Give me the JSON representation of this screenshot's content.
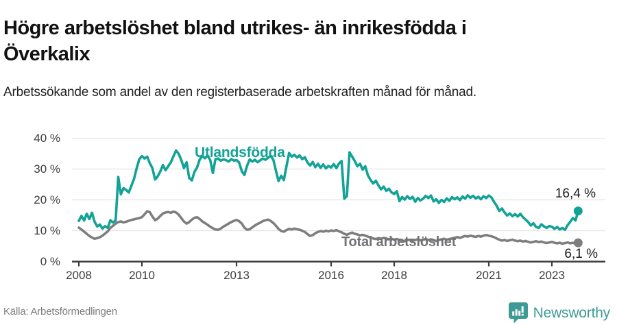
{
  "header": {
    "title_line1": "Högre arbetslöshet bland utrikes- än inrikesfödda i",
    "title_line2": "Överkalix",
    "subtitle": "Arbetssökande som andel av den registerbaserade arbetskraften månad för månad."
  },
  "footer": {
    "source": "Källa: Arbetsförmedlingen",
    "brand": "Newsworthy"
  },
  "colors": {
    "teal_line": "#12a296",
    "gray_line": "#7e7e7e",
    "grid": "#e2e2e2",
    "axis": "#3c3c3c",
    "brand_teal": "#3d9a94"
  },
  "chart_data": {
    "type": "line",
    "frequency": "monthly",
    "x_start": "2008-01",
    "x_end": "2023-11",
    "ylim": [
      0,
      40
    ],
    "grid": "horizontal",
    "y_ticks": [
      {
        "label": "40 %",
        "value": 40
      },
      {
        "label": "30 %",
        "value": 30
      },
      {
        "label": "20 %",
        "value": 20
      },
      {
        "label": "10 %",
        "value": 10
      },
      {
        "label": "0 %",
        "value": 0
      }
    ],
    "x_ticks": [
      {
        "label": "2008",
        "month_index": 0
      },
      {
        "label": "2010",
        "month_index": 24
      },
      {
        "label": "2013",
        "month_index": 60
      },
      {
        "label": "2016",
        "month_index": 96
      },
      {
        "label": "2018",
        "month_index": 120
      },
      {
        "label": "2021",
        "month_index": 156
      },
      {
        "label": "2023",
        "month_index": 180
      }
    ],
    "annotations": {
      "utlandsfodda_label": "Utlandsfödda",
      "total_label": "Total arbetslöshet",
      "utlandsfodda_end_value": "16,4 %",
      "total_end_value": "6,1 %"
    },
    "series": [
      {
        "name": "Utlandsfödda",
        "color": "#12a296",
        "end_marker": true,
        "values": [
          13.2,
          14.8,
          13.3,
          15.5,
          13.8,
          15.8,
          12.9,
          11.4,
          12.0,
          10.7,
          11.5,
          10.9,
          13.4,
          12.7,
          13.3,
          27.4,
          21.8,
          23.8,
          23.2,
          22.4,
          24.6,
          26.8,
          30.2,
          33.2,
          34.2,
          33.4,
          34.0,
          31.9,
          30.3,
          26.6,
          27.6,
          29.2,
          31.3,
          29.6,
          30.9,
          32.2,
          34.1,
          36.0,
          34.9,
          32.9,
          30.3,
          32.2,
          27.1,
          26.3,
          29.1,
          30.5,
          33.1,
          34.2,
          33.5,
          34.4,
          32.9,
          28.7,
          33.2,
          33.4,
          32.7,
          33.1,
          32.9,
          32.4,
          33.2,
          32.7,
          32.9,
          32.1,
          29.3,
          28.1,
          31.0,
          33.1,
          32.4,
          33.0,
          32.2,
          32.8,
          33.4,
          33.0,
          33.6,
          34.3,
          33.0,
          29.5,
          26.1,
          27.8,
          26.4,
          30.8,
          35.2,
          34.0,
          34.6,
          33.7,
          34.4,
          33.2,
          33.8,
          32.1,
          31.1,
          32.3,
          30.6,
          31.7,
          30.4,
          31.5,
          30.2,
          31.0,
          30.5,
          31.6,
          30.3,
          31.8,
          32.6,
          20.4,
          21.2,
          35.4,
          34.0,
          32.6,
          30.9,
          31.7,
          29.8,
          30.9,
          27.9,
          26.5,
          25.3,
          26.2,
          24.7,
          23.4,
          24.3,
          22.9,
          23.6,
          22.4,
          21.9,
          22.8,
          19.6,
          20.9,
          20.1,
          21.2,
          20.3,
          21.0,
          19.4,
          20.6,
          19.8,
          20.4,
          21.3,
          20.6,
          21.4,
          19.5,
          20.2,
          19.0,
          20.0,
          19.3,
          20.5,
          19.7,
          20.9,
          20.2,
          20.8,
          19.9,
          21.1,
          20.4,
          21.5,
          20.7,
          21.3,
          20.5,
          21.0,
          20.2,
          21.2,
          20.6,
          21.4,
          20.8,
          19.3,
          18.1,
          16.4,
          17.2,
          15.9,
          14.9,
          15.6,
          14.7,
          15.4,
          14.6,
          15.5,
          14.4,
          13.6,
          12.8,
          11.7,
          12.4,
          11.2,
          10.9,
          12.1,
          11.4,
          10.9,
          11.5,
          11.3,
          10.6,
          11.2,
          10.4,
          10.9,
          10.3,
          11.8,
          12.9,
          14.1,
          13.3,
          16.4
        ]
      },
      {
        "name": "Total arbetslöshet",
        "color": "#7e7e7e",
        "end_marker": true,
        "values": [
          11.0,
          10.4,
          9.7,
          9.0,
          8.3,
          7.8,
          7.4,
          7.6,
          7.9,
          8.4,
          9.1,
          9.8,
          10.9,
          11.6,
          12.3,
          12.8,
          13.0,
          12.7,
          12.9,
          13.2,
          13.5,
          13.7,
          13.9,
          14.1,
          14.4,
          15.3,
          16.3,
          16.0,
          14.6,
          13.4,
          13.9,
          14.8,
          15.6,
          15.9,
          16.1,
          15.8,
          16.2,
          15.9,
          15.2,
          14.1,
          13.0,
          12.3,
          12.8,
          13.6,
          14.2,
          14.4,
          13.8,
          13.0,
          12.5,
          11.9,
          11.3,
          10.8,
          10.4,
          10.3,
          10.7,
          11.3,
          11.8,
          12.3,
          12.8,
          13.2,
          13.5,
          13.1,
          12.3,
          11.0,
          10.3,
          10.5,
          11.1,
          11.7,
          12.2,
          12.6,
          13.1,
          13.4,
          13.6,
          13.2,
          12.5,
          11.6,
          10.6,
          9.9,
          9.7,
          10.2,
          10.6,
          10.4,
          10.7,
          10.5,
          10.3,
          10.0,
          9.6,
          8.9,
          8.3,
          8.6,
          9.2,
          9.6,
          9.9,
          9.7,
          10.0,
          9.8,
          10.1,
          9.9,
          10.2,
          9.8,
          9.5,
          9.0,
          8.7,
          9.1,
          9.4,
          9.0,
          8.8,
          8.5,
          8.7,
          8.4,
          8.1,
          7.8,
          7.5,
          7.3,
          7.6,
          7.4,
          7.7,
          7.5,
          7.2,
          7.4,
          7.1,
          7.3,
          7.0,
          6.8,
          6.6,
          6.9,
          7.1,
          6.8,
          7.0,
          7.2,
          6.9,
          7.1,
          7.3,
          7.0,
          7.2,
          6.9,
          6.7,
          7.0,
          7.2,
          7.4,
          7.1,
          7.3,
          7.5,
          7.7,
          7.9,
          7.7,
          8.0,
          8.3,
          8.1,
          8.4,
          8.2,
          8.0,
          8.3,
          8.1,
          8.4,
          8.6,
          8.4,
          8.2,
          7.9,
          7.5,
          7.1,
          6.8,
          7.0,
          6.7,
          6.9,
          7.1,
          6.8,
          6.6,
          6.8,
          6.5,
          6.7,
          6.4,
          6.2,
          6.4,
          6.6,
          6.3,
          6.5,
          6.2,
          6.0,
          6.2,
          6.4,
          6.1,
          5.9,
          6.1,
          5.8,
          6.0,
          6.2,
          5.9,
          6.1,
          5.8,
          6.1
        ]
      }
    ]
  }
}
